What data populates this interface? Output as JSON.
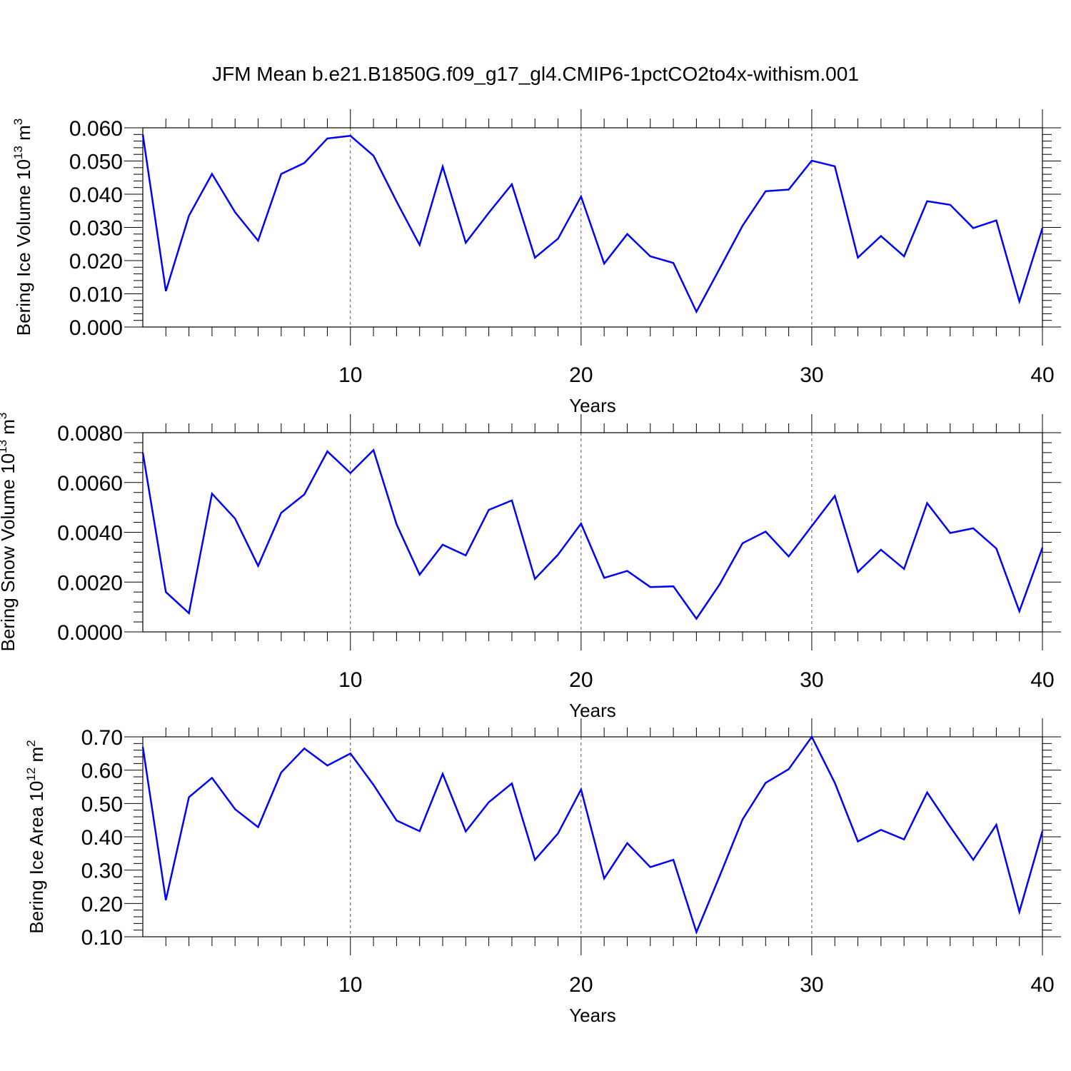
{
  "title": "JFM Mean b.e21.B1850G.f09_g17_gl4.CMIP6-1pctCO2to4x-withism.001",
  "line_color": "#0000ff",
  "chart_data": [
    {
      "type": "line",
      "ylabel": "Bering Ice Volume 10",
      "ylabel_exp": "13",
      "ylabel_unit": " m",
      "ylabel_unit_exp": "3",
      "xlabel": "Years",
      "xlim": [
        1,
        40
      ],
      "ylim": [
        0,
        0.06
      ],
      "xticks": [
        10,
        20,
        30,
        40
      ],
      "xtick_labels": [
        "10",
        "20",
        "30",
        "40"
      ],
      "yticks": [
        0,
        0.01,
        0.02,
        0.03,
        0.04,
        0.05,
        0.06
      ],
      "ytick_labels": [
        "0.000",
        "0.010",
        "0.020",
        "0.030",
        "0.040",
        "0.050",
        "0.060"
      ],
      "grid": "vertical dashed at major x ticks",
      "x": [
        1,
        2,
        3,
        4,
        5,
        6,
        7,
        8,
        9,
        10,
        11,
        12,
        13,
        14,
        15,
        16,
        17,
        18,
        19,
        20,
        21,
        22,
        23,
        24,
        25,
        26,
        27,
        28,
        29,
        30,
        31,
        32,
        33,
        34,
        35,
        36,
        37,
        38,
        39,
        40
      ],
      "values": [
        0.058,
        0.0108,
        0.0335,
        0.0461,
        0.0346,
        0.026,
        0.0461,
        0.0494,
        0.0568,
        0.0576,
        0.0516,
        0.0378,
        0.0247,
        0.0483,
        0.0254,
        0.0344,
        0.043,
        0.0209,
        0.0266,
        0.0393,
        0.0191,
        0.028,
        0.0213,
        0.0193,
        0.0046,
        0.0175,
        0.0305,
        0.0409,
        0.0414,
        0.0501,
        0.0484,
        0.0209,
        0.0274,
        0.0213,
        0.0379,
        0.0368,
        0.0298,
        0.0321,
        0.0077,
        0.0298
      ]
    },
    {
      "type": "line",
      "ylabel": "Bering Snow Volume 10",
      "ylabel_exp": "13",
      "ylabel_unit": " m",
      "ylabel_unit_exp": "3",
      "xlabel": "Years",
      "xlim": [
        1,
        40
      ],
      "ylim": [
        0,
        0.008
      ],
      "xticks": [
        10,
        20,
        30,
        40
      ],
      "xtick_labels": [
        "10",
        "20",
        "30",
        "40"
      ],
      "yticks": [
        0,
        0.002,
        0.004,
        0.006,
        0.008
      ],
      "ytick_labels": [
        "0.0000",
        "0.0020",
        "0.0040",
        "0.0060",
        "0.0080"
      ],
      "grid": "vertical dashed at major x ticks",
      "x": [
        1,
        2,
        3,
        4,
        5,
        6,
        7,
        8,
        9,
        10,
        11,
        12,
        13,
        14,
        15,
        16,
        17,
        18,
        19,
        20,
        21,
        22,
        23,
        24,
        25,
        26,
        27,
        28,
        29,
        30,
        31,
        32,
        33,
        34,
        35,
        36,
        37,
        38,
        39,
        40
      ],
      "values": [
        0.0072,
        0.0016,
        0.00075,
        0.00555,
        0.00455,
        0.00265,
        0.00478,
        0.00552,
        0.00725,
        0.00638,
        0.0073,
        0.00432,
        0.0023,
        0.0035,
        0.00307,
        0.0049,
        0.00528,
        0.00213,
        0.0031,
        0.00435,
        0.00217,
        0.00245,
        0.0018,
        0.00183,
        0.00053,
        0.0019,
        0.00356,
        0.00403,
        0.00303,
        0.00425,
        0.00546,
        0.00241,
        0.0033,
        0.00253,
        0.00517,
        0.00397,
        0.00416,
        0.00335,
        0.00083,
        0.00338
      ]
    },
    {
      "type": "line",
      "ylabel": "Bering Ice Area 10",
      "ylabel_exp": "12",
      "ylabel_unit": " m",
      "ylabel_unit_exp": "2",
      "xlabel": "Years",
      "xlim": [
        1,
        40
      ],
      "ylim": [
        0.1,
        0.7
      ],
      "xticks": [
        10,
        20,
        30,
        40
      ],
      "xtick_labels": [
        "10",
        "20",
        "30",
        "40"
      ],
      "yticks": [
        0.1,
        0.2,
        0.3,
        0.4,
        0.5,
        0.6,
        0.7
      ],
      "ytick_labels": [
        "0.10",
        "0.20",
        "0.30",
        "0.40",
        "0.50",
        "0.60",
        "0.70"
      ],
      "grid": "vertical dashed at major x ticks",
      "x": [
        1,
        2,
        3,
        4,
        5,
        6,
        7,
        8,
        9,
        10,
        11,
        12,
        13,
        14,
        15,
        16,
        17,
        18,
        19,
        20,
        21,
        22,
        23,
        24,
        25,
        26,
        27,
        28,
        29,
        30,
        31,
        32,
        33,
        34,
        35,
        36,
        37,
        38,
        39,
        40
      ],
      "values": [
        0.67,
        0.21,
        0.519,
        0.577,
        0.483,
        0.429,
        0.593,
        0.665,
        0.614,
        0.65,
        0.556,
        0.449,
        0.417,
        0.589,
        0.416,
        0.504,
        0.56,
        0.331,
        0.41,
        0.542,
        0.275,
        0.381,
        0.309,
        0.331,
        0.114,
        0.281,
        0.452,
        0.562,
        0.603,
        0.7,
        0.562,
        0.386,
        0.421,
        0.392,
        0.533,
        0.43,
        0.331,
        0.436,
        0.175,
        0.417
      ]
    }
  ]
}
